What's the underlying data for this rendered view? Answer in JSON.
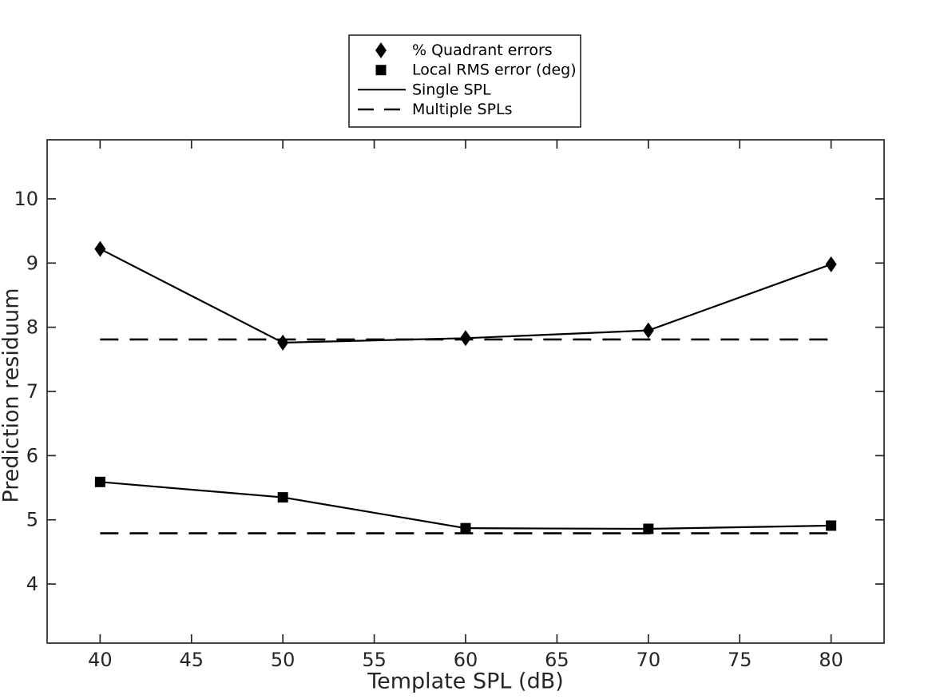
{
  "figure": {
    "background": "#ffffff",
    "axis_color": "#262626",
    "data_color": "#000000"
  },
  "chart_data": {
    "type": "line",
    "title": "",
    "xlabel": "Template SPL (dB)",
    "ylabel": "Prediction residuum",
    "xlim": [
      37.1,
      82.9
    ],
    "ylim": [
      3.08,
      10.92
    ],
    "x_ticks": [
      40,
      45,
      50,
      55,
      60,
      65,
      70,
      75,
      80
    ],
    "y_ticks": [
      4,
      5,
      6,
      7,
      8,
      9,
      10
    ],
    "grid": false,
    "legend_position": "above-plot-center",
    "legend_entries": [
      {
        "label": "% Quadrant errors",
        "symbol": "diamond-marker"
      },
      {
        "label": "Local RMS error (deg)",
        "symbol": "square-marker"
      },
      {
        "label": "Single SPL",
        "symbol": "solid-line"
      },
      {
        "label": "Multiple SPLs",
        "symbol": "dashed-line"
      }
    ],
    "series": [
      {
        "name": "% Quadrant errors - Single SPL",
        "marker": "diamond",
        "line": "solid",
        "x": [
          40,
          50,
          60,
          70,
          80
        ],
        "y": [
          9.22,
          7.76,
          7.83,
          7.95,
          8.98
        ]
      },
      {
        "name": "Local RMS error (deg) - Single SPL",
        "marker": "square",
        "line": "solid",
        "x": [
          40,
          50,
          60,
          70,
          80
        ],
        "y": [
          5.59,
          5.35,
          4.87,
          4.86,
          4.91
        ]
      },
      {
        "name": "% Quadrant errors - Multiple SPLs",
        "marker": "none",
        "line": "dashed",
        "x": [
          40,
          80
        ],
        "y": [
          7.81,
          7.81
        ]
      },
      {
        "name": "Local RMS error (deg) - Multiple SPLs",
        "marker": "none",
        "line": "dashed",
        "x": [
          40,
          80
        ],
        "y": [
          4.79,
          4.79
        ]
      }
    ]
  }
}
